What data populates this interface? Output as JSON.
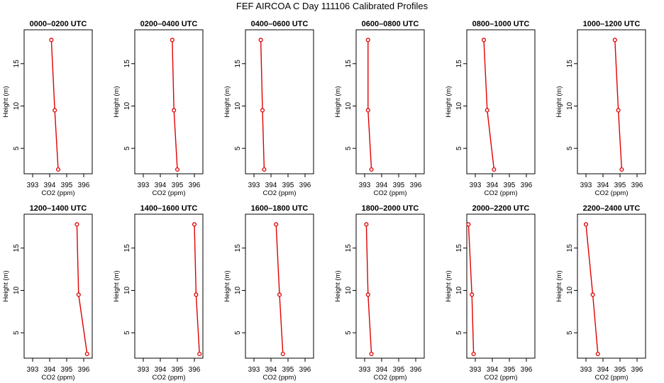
{
  "figure": {
    "title": "FEF AIRCOA C  Day 111106  Calibrated Profiles"
  },
  "style": {
    "line_color": "#e00000",
    "marker": "open-circle"
  },
  "chart_data": [
    {
      "type": "line",
      "title": "0000–0200 UTC",
      "xlabel": "CO2 (ppm)",
      "ylabel": "Height (m)",
      "xlim": [
        392.5,
        396.5
      ],
      "ylim": [
        2,
        19
      ],
      "xticks": [
        393,
        394,
        395,
        396
      ],
      "yticks": [
        5,
        10,
        15
      ],
      "series": [
        {
          "x": [
            394.5,
            394.3,
            394.1
          ],
          "y": [
            2.5,
            9.5,
            17.8
          ]
        }
      ]
    },
    {
      "type": "line",
      "title": "0200–0400 UTC",
      "xlabel": "CO2 (ppm)",
      "ylabel": "Height (m)",
      "xlim": [
        392.5,
        396.5
      ],
      "ylim": [
        2,
        19
      ],
      "xticks": [
        393,
        394,
        395,
        396
      ],
      "yticks": [
        5,
        10,
        15
      ],
      "series": [
        {
          "x": [
            395.0,
            394.8,
            394.7
          ],
          "y": [
            2.5,
            9.5,
            17.8
          ]
        }
      ]
    },
    {
      "type": "line",
      "title": "0400–0600 UTC",
      "xlabel": "CO2 (ppm)",
      "ylabel": "Height (m)",
      "xlim": [
        392.5,
        396.5
      ],
      "ylim": [
        2,
        19
      ],
      "xticks": [
        393,
        394,
        395,
        396
      ],
      "yticks": [
        5,
        10,
        15
      ],
      "series": [
        {
          "x": [
            393.6,
            393.5,
            393.4
          ],
          "y": [
            2.5,
            9.5,
            17.8
          ]
        }
      ]
    },
    {
      "type": "line",
      "title": "0600–0800 UTC",
      "xlabel": "CO2 (ppm)",
      "ylabel": "Height (m)",
      "xlim": [
        392.5,
        396.5
      ],
      "ylim": [
        2,
        19
      ],
      "xticks": [
        393,
        394,
        395,
        396
      ],
      "yticks": [
        5,
        10,
        15
      ],
      "series": [
        {
          "x": [
            393.4,
            393.2,
            393.2
          ],
          "y": [
            2.5,
            9.5,
            17.8
          ]
        }
      ]
    },
    {
      "type": "line",
      "title": "0800–1000 UTC",
      "xlabel": "CO2 (ppm)",
      "ylabel": "Height (m)",
      "xlim": [
        392.5,
        396.5
      ],
      "ylim": [
        2,
        19
      ],
      "xticks": [
        393,
        394,
        395,
        396
      ],
      "yticks": [
        5,
        10,
        15
      ],
      "series": [
        {
          "x": [
            394.1,
            393.7,
            393.5
          ],
          "y": [
            2.5,
            9.5,
            17.8
          ]
        }
      ]
    },
    {
      "type": "line",
      "title": "1000–1200 UTC",
      "xlabel": "CO2 (ppm)",
      "ylabel": "Height (m)",
      "xlim": [
        392.5,
        396.5
      ],
      "ylim": [
        2,
        19
      ],
      "xticks": [
        393,
        394,
        395,
        396
      ],
      "yticks": [
        5,
        10,
        15
      ],
      "series": [
        {
          "x": [
            395.1,
            394.9,
            394.7
          ],
          "y": [
            2.5,
            9.5,
            17.8
          ]
        }
      ]
    },
    {
      "type": "line",
      "title": "1200–1400 UTC",
      "xlabel": "CO2 (ppm)",
      "ylabel": "Height (m)",
      "xlim": [
        392.5,
        396.5
      ],
      "ylim": [
        2,
        19
      ],
      "xticks": [
        393,
        394,
        395,
        396
      ],
      "yticks": [
        5,
        10,
        15
      ],
      "series": [
        {
          "x": [
            396.2,
            395.7,
            395.6
          ],
          "y": [
            2.5,
            9.5,
            17.8
          ]
        }
      ]
    },
    {
      "type": "line",
      "title": "1400–1600 UTC",
      "xlabel": "CO2 (ppm)",
      "ylabel": "Height (m)",
      "xlim": [
        392.5,
        396.5
      ],
      "ylim": [
        2,
        19
      ],
      "xticks": [
        393,
        394,
        395,
        396
      ],
      "yticks": [
        5,
        10,
        15
      ],
      "series": [
        {
          "x": [
            396.3,
            396.1,
            396.0
          ],
          "y": [
            2.5,
            9.5,
            17.8
          ]
        }
      ]
    },
    {
      "type": "line",
      "title": "1600–1800 UTC",
      "xlabel": "CO2 (ppm)",
      "ylabel": "Height (m)",
      "xlim": [
        392.5,
        396.5
      ],
      "ylim": [
        2,
        19
      ],
      "xticks": [
        393,
        394,
        395,
        396
      ],
      "yticks": [
        5,
        10,
        15
      ],
      "series": [
        {
          "x": [
            394.7,
            394.5,
            394.3
          ],
          "y": [
            2.5,
            9.5,
            17.8
          ]
        }
      ]
    },
    {
      "type": "line",
      "title": "1800–2000 UTC",
      "xlabel": "CO2 (ppm)",
      "ylabel": "Height (m)",
      "xlim": [
        392.5,
        396.5
      ],
      "ylim": [
        2,
        19
      ],
      "xticks": [
        393,
        394,
        395,
        396
      ],
      "yticks": [
        5,
        10,
        15
      ],
      "series": [
        {
          "x": [
            393.4,
            393.2,
            393.1
          ],
          "y": [
            2.5,
            9.5,
            17.8
          ]
        }
      ]
    },
    {
      "type": "line",
      "title": "2000–2200 UTC",
      "xlabel": "CO2 (ppm)",
      "ylabel": "Height (m)",
      "xlim": [
        392.5,
        396.5
      ],
      "ylim": [
        2,
        19
      ],
      "xticks": [
        393,
        394,
        395,
        396
      ],
      "yticks": [
        5,
        10,
        15
      ],
      "series": [
        {
          "x": [
            392.9,
            392.8,
            392.6
          ],
          "y": [
            2.5,
            9.5,
            17.8
          ]
        }
      ]
    },
    {
      "type": "line",
      "title": "2200–2400 UTC",
      "xlabel": "CO2 (ppm)",
      "ylabel": "Height (m)",
      "xlim": [
        392.5,
        396.5
      ],
      "ylim": [
        2,
        19
      ],
      "xticks": [
        393,
        394,
        395,
        396
      ],
      "yticks": [
        5,
        10,
        15
      ],
      "series": [
        {
          "x": [
            393.7,
            393.4,
            393.0
          ],
          "y": [
            2.5,
            9.5,
            17.8
          ]
        }
      ]
    }
  ]
}
